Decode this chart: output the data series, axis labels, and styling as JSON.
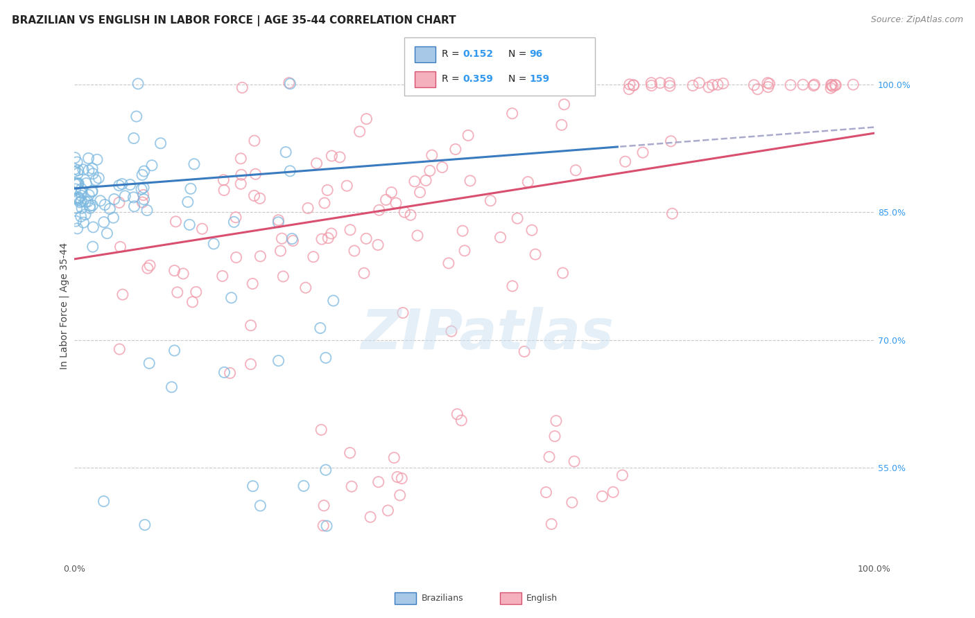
{
  "title": "BRAZILIAN VS ENGLISH IN LABOR FORCE | AGE 35-44 CORRELATION CHART",
  "source": "Source: ZipAtlas.com",
  "ylabel": "In Labor Force | Age 35-44",
  "xlim": [
    0.0,
    1.0
  ],
  "ylim": [
    0.44,
    1.04
  ],
  "y_ticks_right": [
    0.55,
    0.7,
    0.85,
    1.0
  ],
  "y_tick_labels_right": [
    "55.0%",
    "70.0%",
    "85.0%",
    "100.0%"
  ],
  "blue_R": 0.152,
  "blue_N": 96,
  "pink_R": 0.359,
  "pink_N": 159,
  "blue_color": "#7ab8e0",
  "pink_color": "#f098a8",
  "blue_line_color": "#3a7abf",
  "pink_line_color": "#d94f70",
  "blue_line_intercept": 0.878,
  "blue_line_slope": 0.072,
  "pink_line_intercept": 0.795,
  "pink_line_slope": 0.148,
  "blue_dashed_split": 0.68,
  "legend_blue_patch": "#a8c8e8",
  "legend_pink_patch": "#f4b0bc",
  "watermark": "ZIPatlas",
  "background_color": "#ffffff",
  "title_fontsize": 11,
  "source_fontsize": 9,
  "ylabel_fontsize": 10,
  "seed": 42
}
